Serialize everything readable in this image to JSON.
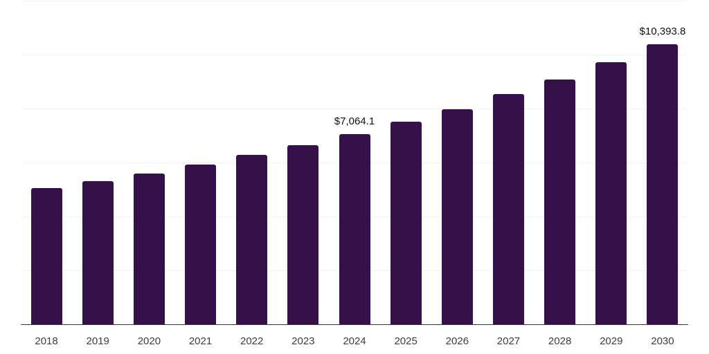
{
  "chart_data": {
    "type": "bar",
    "title": "",
    "xlabel": "",
    "ylabel": "",
    "categories": [
      "2018",
      "2019",
      "2020",
      "2021",
      "2022",
      "2023",
      "2024",
      "2025",
      "2026",
      "2027",
      "2028",
      "2029",
      "2030"
    ],
    "values": [
      5044,
      5300,
      5590,
      5930,
      6272,
      6646,
      7064.1,
      7508,
      7987,
      8532,
      9077,
      9727,
      10393.8
    ],
    "value_labels": {
      "2024": "$7,064.1",
      "2030": "$10,393.8"
    },
    "ylim": [
      0,
      12000
    ],
    "gridline_step": 2000,
    "grid": "horizontal-only",
    "legend": "none",
    "y_axis_tick_labels": "none",
    "colors": {
      "bar": "#351149",
      "gridline": "#f2f2f2",
      "axis_line": "#333333",
      "x_label_text": "#3d3d3d",
      "data_label_text": "#111111",
      "background": "#ffffff"
    }
  }
}
